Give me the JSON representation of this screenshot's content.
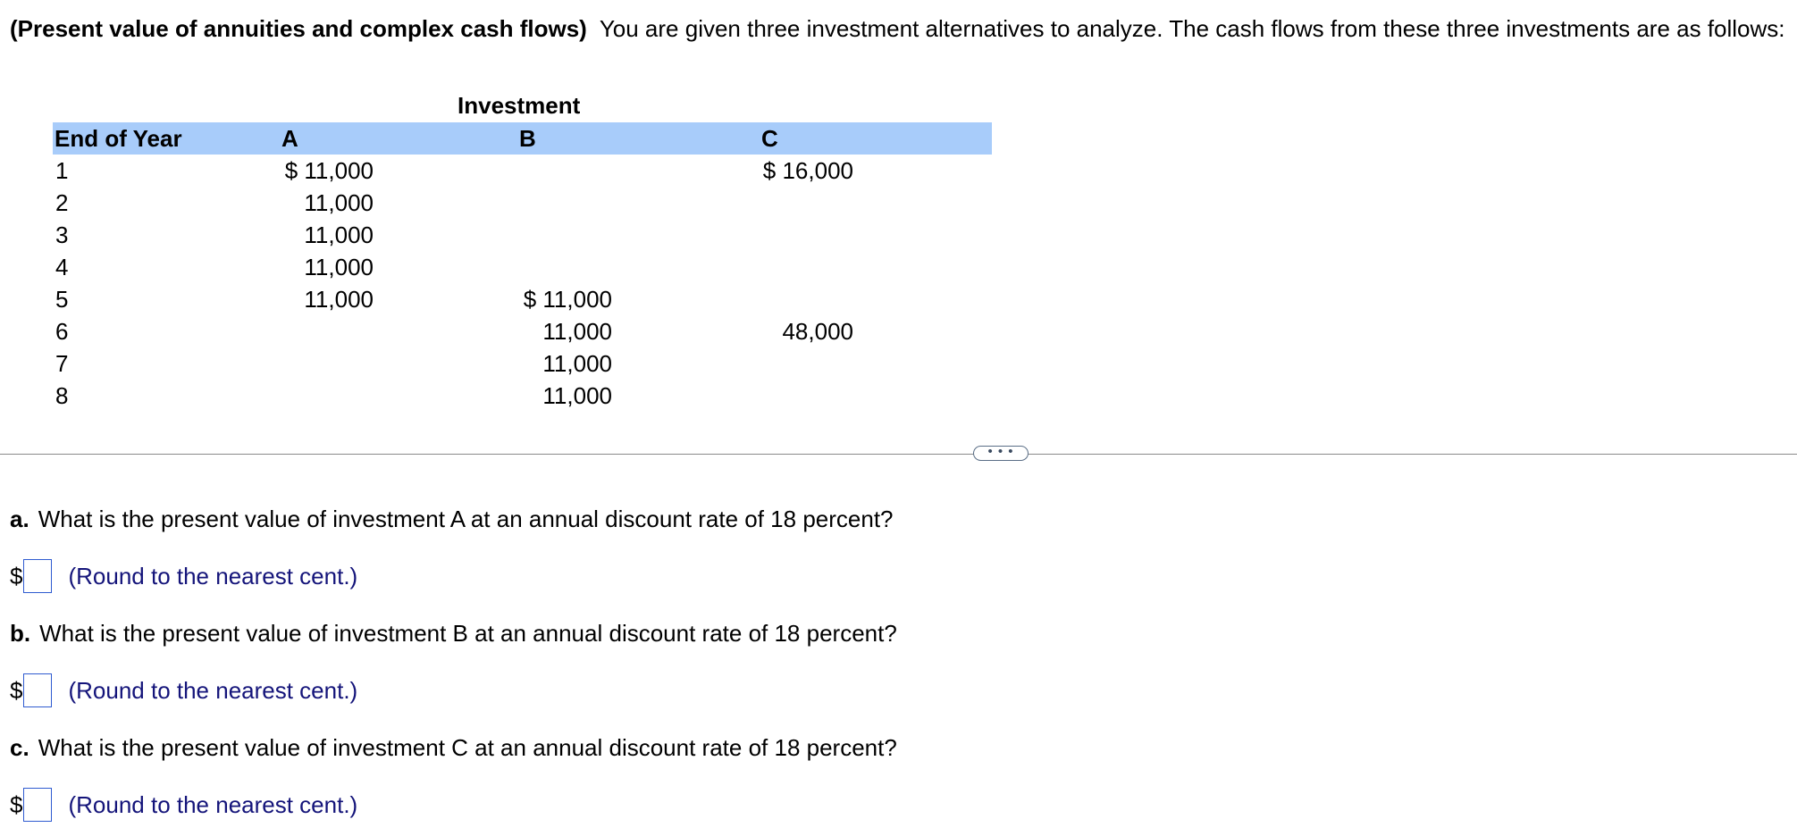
{
  "intro": {
    "title": "(Present value of annuities and complex cash flows)",
    "text": "You are given three investment alternatives to analyze.  The cash flows from these three investments are as follows:"
  },
  "table": {
    "group_header": "Investment",
    "headers": {
      "year": "End of Year",
      "a": "A",
      "b": "B",
      "c": "C"
    },
    "rows": [
      {
        "year": "1",
        "a": "$ 11,000",
        "b": "",
        "c": "$ 16,000"
      },
      {
        "year": "2",
        "a": "11,000",
        "b": "",
        "c": ""
      },
      {
        "year": "3",
        "a": "11,000",
        "b": "",
        "c": ""
      },
      {
        "year": "4",
        "a": "11,000",
        "b": "",
        "c": ""
      },
      {
        "year": "5",
        "a": "11,000",
        "b": "$ 11,000",
        "c": ""
      },
      {
        "year": "6",
        "a": "",
        "b": "11,000",
        "c": "48,000"
      },
      {
        "year": "7",
        "a": "",
        "b": "11,000",
        "c": ""
      },
      {
        "year": "8",
        "a": "",
        "b": "11,000",
        "c": ""
      }
    ]
  },
  "more_button": {
    "label": "• • •"
  },
  "questions": [
    {
      "letter": "a.",
      "text": "What is the present value of investment A at an annual discount rate of 18 percent?",
      "currency": "$",
      "value": "",
      "hint": "(Round to the nearest cent.)"
    },
    {
      "letter": "b.",
      "text": "What is the present value of investment B at an annual discount rate of 18 percent?",
      "currency": "$",
      "value": "",
      "hint": "(Round to the nearest cent.)"
    },
    {
      "letter": "c.",
      "text": "What is the present value of investment C at an annual discount rate of 18 percent?",
      "currency": "$",
      "value": "",
      "hint": "(Round to the nearest cent.)"
    }
  ],
  "colors": {
    "header_band": "#a8ccfa",
    "hint_text": "#14147a",
    "input_border": "#2f5bd0"
  }
}
